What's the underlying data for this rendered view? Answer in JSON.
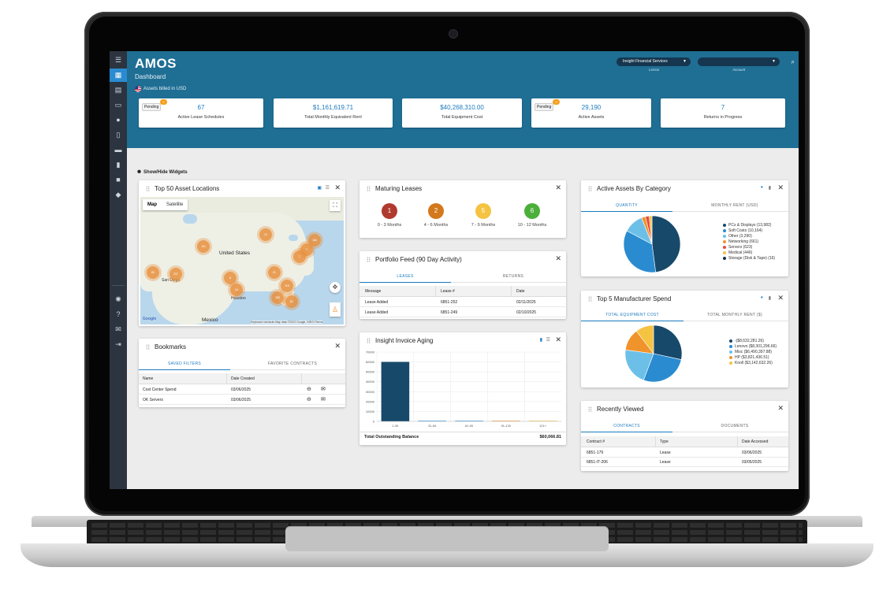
{
  "header": {
    "logo": "AMOS",
    "title": "Dashboard",
    "billed": "Assets billed in USD",
    "lessor_select": "Insight Financial Services",
    "lessor_caption": "Lessor",
    "account_select": "",
    "account_caption": "Account"
  },
  "kpis": [
    {
      "value": "67",
      "label": "Active Lease Schedules",
      "pending": "Pending",
      "pending_count": "2"
    },
    {
      "value": "$1,161,619.71",
      "label": "Total Monthly Equivalent Rent"
    },
    {
      "value": "$40,268,310.00",
      "label": "Total Equipment Cost"
    },
    {
      "value": "29,190",
      "label": "Active Assets",
      "pending": "Pending",
      "pending_count": "0"
    },
    {
      "value": "7",
      "label": "Returns in Progress"
    }
  ],
  "show_hide": "Show/Hide Widgets",
  "map_widget": {
    "title": "Top 50 Asset Locations",
    "tab_map": "Map",
    "tab_satellite": "Satellite",
    "labels": {
      "us": "United States",
      "mexico": "Mexico",
      "sf": "San Diego",
      "houston": "Houston",
      "google": "Google",
      "footer": "Keyboard shortcuts   Map data ©2023 Google, INEGI   Terms"
    },
    "clusters": [
      "101",
      "12",
      "164",
      "7",
      "80",
      "237",
      "21",
      "8",
      "14",
      "180",
      "61",
      "115",
      "7"
    ]
  },
  "bookmarks": {
    "title": "Bookmarks",
    "tabs": [
      "SAVED FILTERS",
      "FAVORITE CONTRACTS"
    ],
    "columns": [
      "Name",
      "Date Created"
    ],
    "rows": [
      {
        "name": "Cost Center Spend",
        "date": "03/06/2025"
      },
      {
        "name": "OK Servers",
        "date": "03/06/2025"
      }
    ]
  },
  "maturing": {
    "title": "Maturing Leases",
    "items": [
      {
        "count": "1",
        "label": "0 - 3 Months",
        "color": "#b03a2e"
      },
      {
        "count": "2",
        "label": "4 - 6 Months",
        "color": "#d4781c"
      },
      {
        "count": "5",
        "label": "7 - 9 Months",
        "color": "#f5c342"
      },
      {
        "count": "6",
        "label": "10 - 12 Months",
        "color": "#4caf3a"
      }
    ]
  },
  "feed": {
    "title": "Portfolio Feed (90 Day Activity)",
    "tabs": [
      "LEASES",
      "RETURNS"
    ],
    "columns": [
      "Message",
      "Lease #",
      "Date"
    ],
    "rows": [
      {
        "message": "Lease Added",
        "lease": "6851-252",
        "date": "02/11/2025"
      },
      {
        "message": "Lease Added",
        "lease": "6851-249",
        "date": "02/10/2025"
      }
    ]
  },
  "aging": {
    "title": "Insight Invoice Aging",
    "total_label": "Total Outstanding Balance",
    "total_value": "$60,066.81"
  },
  "category": {
    "title": "Active Assets By Category",
    "tabs": [
      "QUANTITY",
      "MONTHLY RENT (USD)"
    ],
    "legend": [
      {
        "label": "PCs & Displays (13,982)",
        "color": "#17496b"
      },
      {
        "label": "Soft Costs (10,164)",
        "color": "#2a8bd0"
      },
      {
        "label": "Other (3,290)",
        "color": "#6cc0e8"
      },
      {
        "label": "Networking (661)",
        "color": "#f0932b"
      },
      {
        "label": "Servers (623)",
        "color": "#e74c3c"
      },
      {
        "label": "Medical (446)",
        "color": "#f5c342"
      },
      {
        "label": "Storage (Disk & Tape) (16)",
        "color": "#0f3550"
      }
    ]
  },
  "manufacturer": {
    "title": "Top 5 Manufacturer Spend",
    "tabs": [
      "TOTAL EQUIPMENT COST",
      "TOTAL MONTHLY RENT ($)"
    ],
    "legend": [
      {
        "label": "-($8,632,281.26)",
        "color": "#17496b"
      },
      {
        "label": "Lenovo ($8,301,296.66)",
        "color": "#2a8bd0"
      },
      {
        "label": "Misc ($6,490,397.88)",
        "color": "#6cc0e8"
      },
      {
        "label": "HP ($3,821,436.51)",
        "color": "#f0932b"
      },
      {
        "label": "Knoll ($3,142,632.26)",
        "color": "#f5c342"
      }
    ]
  },
  "recent": {
    "title": "Recently Viewed",
    "tabs": [
      "CONTRACTS",
      "DOCUMENTS"
    ],
    "columns": [
      "Contract #",
      "Type",
      "Date Accessed"
    ],
    "rows": [
      {
        "contract": "6851-179",
        "type": "Lease",
        "date": "03/06/2025"
      },
      {
        "contract": "6851-IT-206",
        "type": "Lease",
        "date": "03/05/2025"
      }
    ]
  },
  "chart_data": [
    {
      "type": "bar",
      "categories": [
        "1-30",
        "31-60",
        "61-90",
        "91-120",
        "121+"
      ],
      "values": [
        60066.81,
        0,
        0,
        0,
        0
      ],
      "ylim": [
        0,
        70000
      ],
      "yticks": [
        "0",
        "10000",
        "20000",
        "30000",
        "40000",
        "50000",
        "60000",
        "70000"
      ],
      "colors": [
        "#17496b",
        "#2a8bd0",
        "#2a8bd0",
        "#f0932b",
        "#f5c342"
      ]
    },
    {
      "type": "pie",
      "labels": [
        "PCs & Displays",
        "Soft Costs",
        "Other",
        "Networking",
        "Servers",
        "Medical",
        "Storage (Disk & Tape)"
      ],
      "values": [
        13982,
        10164,
        3290,
        661,
        623,
        446,
        16
      ],
      "colors": [
        "#17496b",
        "#2a8bd0",
        "#6cc0e8",
        "#f0932b",
        "#e74c3c",
        "#f5c342",
        "#0f3550"
      ]
    },
    {
      "type": "pie",
      "labels": [
        "-",
        "Lenovo",
        "Misc",
        "HP",
        "Knoll"
      ],
      "values": [
        8632281.26,
        8301296.66,
        6490397.88,
        3821436.51,
        3142632.26
      ],
      "colors": [
        "#17496b",
        "#2a8bd0",
        "#6cc0e8",
        "#f0932b",
        "#f5c342"
      ]
    }
  ]
}
